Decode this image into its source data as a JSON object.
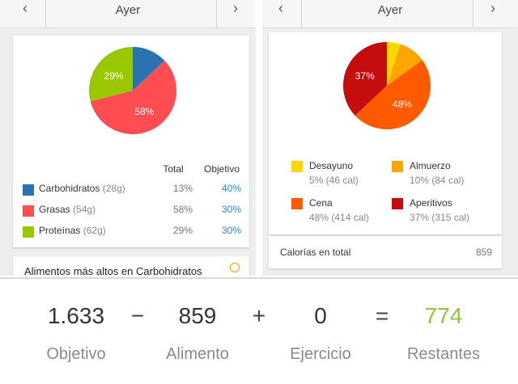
{
  "left_panel": {
    "date_label": "Ayer",
    "prev_icon": "chevron-left-icon",
    "next_icon": "chevron-right-icon",
    "col_total": "Total",
    "col_goal": "Objetivo",
    "rows": [
      {
        "name": "Carbohidratos",
        "grams": "(28g)",
        "total": "13%",
        "goal": "40%",
        "color": "#2a72b0"
      },
      {
        "name": "Grasas",
        "grams": "(54g)",
        "total": "58%",
        "goal": "30%",
        "color": "#ff4d52"
      },
      {
        "name": "Proteínas",
        "grams": "(62g)",
        "total": "29%",
        "goal": "30%",
        "color": "#99c800"
      }
    ],
    "pie_labels": [
      "58%",
      "29%"
    ],
    "peek_text": "Alimentos más altos en Carbohidratos",
    "peek_icon": "info-icon"
  },
  "right_panel": {
    "date_label": "Ayer",
    "prev_icon": "chevron-left-icon",
    "next_icon": "chevron-right-icon",
    "legend": [
      {
        "name": "Desayuno",
        "detail": "5% (46 cal)",
        "color": "#ffd700"
      },
      {
        "name": "Almuerzo",
        "detail": "10% (84 cal)",
        "color": "#ffa500"
      },
      {
        "name": "Cena",
        "detail": "48% (414 cal)",
        "color": "#ff5a00"
      },
      {
        "name": "Aperitivos",
        "detail": "37% (315 cal)",
        "color": "#c50d0d"
      }
    ],
    "pie_labels": [
      "48%",
      "37%"
    ],
    "total_label": "Calorías en total",
    "total_value": "859"
  },
  "chart_data": [
    {
      "type": "pie",
      "title": "",
      "categories": [
        "Carbohidratos",
        "Grasas",
        "Proteínas"
      ],
      "values": [
        13,
        58,
        29
      ],
      "colors": [
        "#2a72b0",
        "#ff4d52",
        "#99c800"
      ]
    },
    {
      "type": "pie",
      "title": "",
      "categories": [
        "Desayuno",
        "Almuerzo",
        "Cena",
        "Aperitivos"
      ],
      "values": [
        5,
        10,
        48,
        37
      ],
      "colors": [
        "#ffd700",
        "#ffa500",
        "#ff5a00",
        "#c50d0d"
      ]
    }
  ],
  "summary": {
    "goal_value": "1.633",
    "goal_label": "Objetivo",
    "minus": "−",
    "food_value": "859",
    "food_label": "Alimento",
    "plus": "+",
    "exercise_value": "0",
    "exercise_label": "Ejercicio",
    "equals": "=",
    "remaining_value": "774",
    "remaining_label": "Restantes",
    "remaining_color": "#8dc63f"
  }
}
